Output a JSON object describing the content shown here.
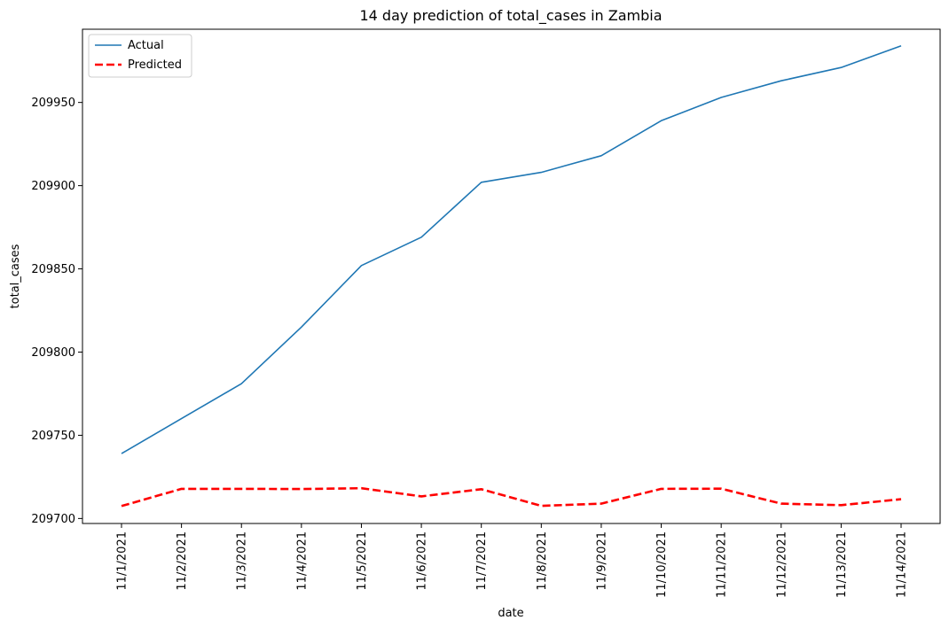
{
  "chart_data": {
    "type": "line",
    "title": "14 day prediction of total_cases in Zambia",
    "xlabel": "date",
    "ylabel": "total_cases",
    "categories": [
      "11/1/2021",
      "11/2/2021",
      "11/3/2021",
      "11/4/2021",
      "11/5/2021",
      "11/6/2021",
      "11/7/2021",
      "11/8/2021",
      "11/9/2021",
      "11/10/2021",
      "11/11/2021",
      "11/12/2021",
      "11/13/2021",
      "11/14/2021"
    ],
    "yticks": [
      "209700",
      "209750",
      "209800",
      "209850",
      "209900",
      "209950"
    ],
    "ylim": [
      209697,
      209994
    ],
    "grid": false,
    "legend_position": "top-left",
    "series": [
      {
        "name": "Actual",
        "color": "#1f77b4",
        "style": "solid",
        "values": [
          209739,
          209760,
          209781,
          209815,
          209852,
          209869,
          209902,
          209908,
          209918,
          209939,
          209953,
          209963,
          209971,
          209984
        ]
      },
      {
        "name": "Predicted",
        "color": "#ff0000",
        "style": "dashed",
        "values": [
          209707.5,
          209717.8,
          209717.8,
          209717.7,
          209718.2,
          209713.3,
          209717.6,
          209707.6,
          209708.9,
          209717.8,
          209717.9,
          209708.9,
          209708.0,
          209711.6
        ]
      }
    ]
  }
}
